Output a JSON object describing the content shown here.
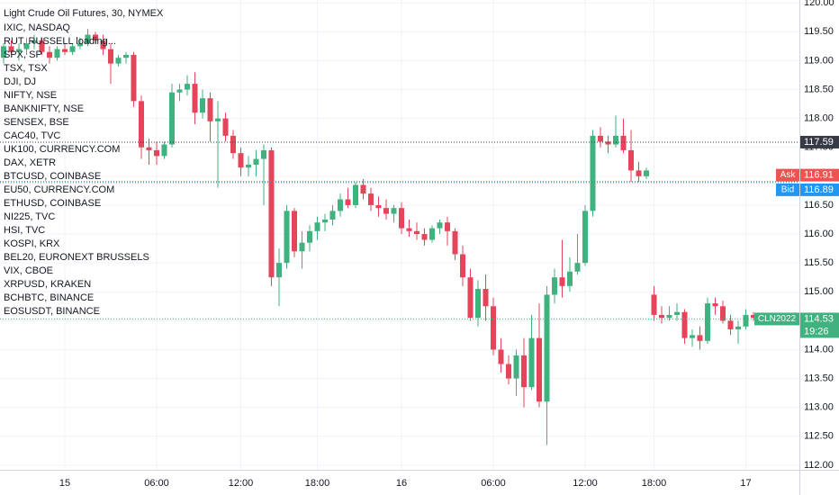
{
  "chart_data": {
    "type": "candlestick",
    "title": "Light Crude Oil Futures, 30, NYMEX",
    "watchlist": [
      "IXIC, NASDAQ",
      "RUT, RUSSELL loading...",
      "SPX, SP",
      "TSX, TSX",
      "DJI, DJ",
      "NIFTY, NSE",
      "BANKNIFTY, NSE",
      "SENSEX, BSE",
      "CAC40, TVC",
      "UK100, CURRENCY.COM",
      "DAX, XETR",
      "BTCUSD, COINBASE",
      "EU50, CURRENCY.COM",
      "ETHUSD, COINBASE",
      "NI225, TVC",
      "HSI, TVC",
      "KOSPI, KRX",
      "BEL20, EURONEXT BRUSSELS",
      "VIX, CBOE",
      "XRPUSD, KRAKEN",
      "BCHBTC, BINANCE",
      "EOSUSDT, BINANCE"
    ],
    "categories": [
      null,
      null,
      null,
      null,
      null,
      null,
      null,
      null,
      "15",
      null,
      null,
      null,
      null,
      null,
      null,
      null,
      null,
      null,
      null,
      null,
      "06:00",
      null,
      null,
      null,
      null,
      null,
      null,
      null,
      null,
      null,
      null,
      "12:00",
      null,
      null,
      null,
      null,
      null,
      null,
      null,
      null,
      null,
      "18:00",
      null,
      null,
      null,
      null,
      null,
      null,
      null,
      null,
      null,
      null,
      "16",
      null,
      null,
      null,
      null,
      null,
      null,
      null,
      null,
      null,
      null,
      null,
      "06:00",
      null,
      null,
      null,
      null,
      null,
      null,
      null,
      null,
      null,
      null,
      null,
      "12:00",
      null,
      null,
      null,
      null,
      null,
      null,
      null,
      null,
      "18:00",
      null,
      null,
      null,
      null,
      null,
      null,
      null,
      null,
      null,
      null,
      null,
      "17",
      null,
      null
    ],
    "open": [
      119.05,
      119.25,
      119.15,
      119.2,
      119.3,
      119.35,
      119.15,
      119.05,
      119.2,
      119.15,
      119.25,
      119.3,
      119.45,
      119.35,
      119.2,
      118.95,
      119.05,
      119.1,
      118.3,
      117.5,
      117.45,
      117.35,
      117.55,
      118.45,
      118.5,
      118.6,
      118.1,
      118.35,
      117.95,
      118.0,
      117.7,
      117.4,
      117.15,
      117.2,
      117.3,
      117.45,
      115.25,
      115.5,
      116.4,
      115.7,
      115.85,
      116.05,
      116.2,
      116.25,
      116.4,
      116.6,
      116.5,
      116.85,
      116.7,
      116.5,
      116.45,
      116.35,
      116.45,
      116.1,
      116.05,
      116.0,
      115.9,
      116.1,
      116.2,
      116.05,
      115.65,
      115.25,
      114.55,
      115.05,
      114.75,
      114.0,
      113.75,
      113.5,
      113.9,
      113.35,
      114.2,
      113.1,
      114.95,
      115.25,
      115.1,
      115.35,
      115.5,
      116.4,
      117.7,
      117.6,
      117.55,
      117.7,
      117.45,
      117.1,
      117.0,
      114.95,
      114.6,
      114.55,
      114.6,
      114.65,
      114.2,
      114.25,
      114.15,
      114.8,
      114.75,
      114.5,
      114.35,
      114.4,
      114.6,
      114.55
    ],
    "high": [
      119.3,
      119.35,
      119.3,
      119.4,
      119.45,
      119.4,
      119.25,
      119.25,
      119.3,
      119.3,
      119.4,
      119.55,
      119.5,
      119.45,
      119.3,
      119.1,
      119.15,
      119.15,
      118.4,
      117.65,
      117.6,
      117.6,
      118.6,
      118.6,
      118.75,
      118.8,
      118.5,
      118.45,
      118.3,
      118.1,
      117.8,
      117.5,
      117.35,
      117.45,
      117.55,
      117.5,
      115.75,
      116.5,
      116.45,
      116.05,
      116.15,
      116.3,
      116.35,
      116.5,
      116.7,
      116.8,
      116.9,
      116.95,
      116.8,
      116.65,
      116.6,
      116.5,
      116.55,
      116.25,
      116.2,
      116.1,
      116.15,
      116.25,
      116.3,
      116.1,
      115.8,
      115.4,
      115.2,
      115.3,
      114.9,
      114.2,
      113.9,
      114.0,
      114.2,
      114.6,
      114.8,
      115.1,
      115.4,
      115.9,
      115.6,
      116.0,
      116.5,
      117.8,
      117.85,
      117.7,
      118.05,
      118.0,
      117.8,
      117.25,
      117.15,
      115.1,
      114.75,
      114.75,
      114.8,
      114.7,
      114.35,
      114.4,
      114.9,
      114.9,
      114.85,
      114.6,
      114.5,
      114.7,
      114.65,
      114.6
    ],
    "low": [
      118.95,
      119.1,
      119.0,
      119.1,
      119.2,
      119.1,
      118.95,
      119.0,
      119.1,
      119.1,
      119.2,
      119.25,
      119.3,
      119.1,
      118.6,
      118.9,
      118.95,
      118.2,
      117.3,
      117.2,
      117.2,
      117.3,
      117.5,
      118.3,
      118.4,
      117.9,
      118.0,
      117.6,
      116.8,
      117.6,
      117.3,
      117.0,
      117.0,
      117.0,
      116.5,
      115.1,
      114.75,
      115.4,
      115.6,
      115.4,
      115.7,
      115.9,
      116.05,
      116.15,
      116.3,
      116.45,
      116.45,
      116.6,
      116.4,
      116.3,
      116.25,
      116.2,
      116.0,
      115.95,
      115.9,
      115.8,
      115.85,
      116.0,
      115.8,
      115.55,
      115.1,
      114.5,
      114.4,
      114.5,
      113.9,
      113.6,
      113.4,
      113.2,
      113.0,
      113.3,
      113.0,
      112.35,
      114.8,
      114.9,
      115.0,
      115.3,
      115.45,
      116.3,
      117.5,
      117.4,
      117.5,
      117.4,
      116.9,
      116.9,
      116.95,
      114.5,
      114.45,
      114.5,
      114.5,
      114.1,
      114.05,
      114.0,
      114.1,
      114.6,
      114.45,
      114.25,
      114.1,
      114.35,
      114.5,
      114.5
    ],
    "close": [
      119.25,
      119.15,
      119.2,
      119.3,
      119.35,
      119.15,
      119.05,
      119.2,
      119.15,
      119.25,
      119.3,
      119.45,
      119.35,
      119.2,
      118.95,
      119.05,
      119.1,
      118.3,
      117.5,
      117.45,
      117.35,
      117.55,
      118.45,
      118.5,
      118.6,
      118.1,
      118.35,
      117.95,
      118.0,
      117.7,
      117.4,
      117.15,
      117.2,
      117.3,
      117.45,
      115.25,
      115.5,
      116.4,
      115.7,
      115.85,
      116.05,
      116.2,
      116.25,
      116.4,
      116.6,
      116.5,
      116.85,
      116.7,
      116.5,
      116.45,
      116.35,
      116.45,
      116.1,
      116.05,
      116.0,
      115.9,
      116.1,
      116.2,
      116.05,
      115.65,
      115.25,
      114.55,
      115.05,
      114.75,
      114.0,
      113.75,
      113.5,
      113.9,
      113.35,
      114.2,
      113.1,
      114.95,
      115.25,
      115.1,
      115.35,
      115.5,
      116.4,
      117.7,
      117.6,
      117.55,
      117.7,
      117.45,
      117.1,
      117.0,
      117.1,
      114.6,
      114.55,
      114.6,
      114.65,
      114.2,
      114.25,
      114.15,
      114.8,
      114.75,
      114.5,
      114.35,
      114.4,
      114.6,
      114.55,
      114.53
    ],
    "up_color": "#3fb27f",
    "down_color": "#e5455a",
    "ylim": [
      111.92,
      120.05
    ],
    "yticks": [
      {
        "value": 120,
        "label": "120.00"
      },
      {
        "value": 119.5,
        "label": "119.50"
      },
      {
        "value": 119,
        "label": "119.00"
      },
      {
        "value": 118.5,
        "label": "118.50"
      },
      {
        "value": 118,
        "label": "118.00"
      },
      {
        "value": 117.5,
        "label": "117.50"
      },
      {
        "value": 117,
        "label": "117.00"
      },
      {
        "value": 116.5,
        "label": "116.50"
      },
      {
        "value": 116,
        "label": "116.00"
      },
      {
        "value": 115.5,
        "label": "115.50"
      },
      {
        "value": 115,
        "label": "115.00"
      },
      {
        "value": 114.5,
        "label": "114.50"
      },
      {
        "value": 114,
        "label": "114.00"
      },
      {
        "value": 113.5,
        "label": "113.50"
      },
      {
        "value": 113,
        "label": "113.00"
      },
      {
        "value": 112.5,
        "label": "112.50"
      },
      {
        "value": 112,
        "label": "112.00"
      }
    ],
    "grid": true,
    "price_lines": [
      {
        "value": 117.59,
        "color": "#363a45"
      },
      {
        "name": "Ask",
        "value": 116.91,
        "color": "#ef5350"
      },
      {
        "name": "Bid",
        "value": 116.89,
        "color": "#2196f3"
      },
      {
        "name": "CLN2022",
        "value": 114.53,
        "countdown": "19:26",
        "color": "#3fb27f"
      }
    ]
  }
}
